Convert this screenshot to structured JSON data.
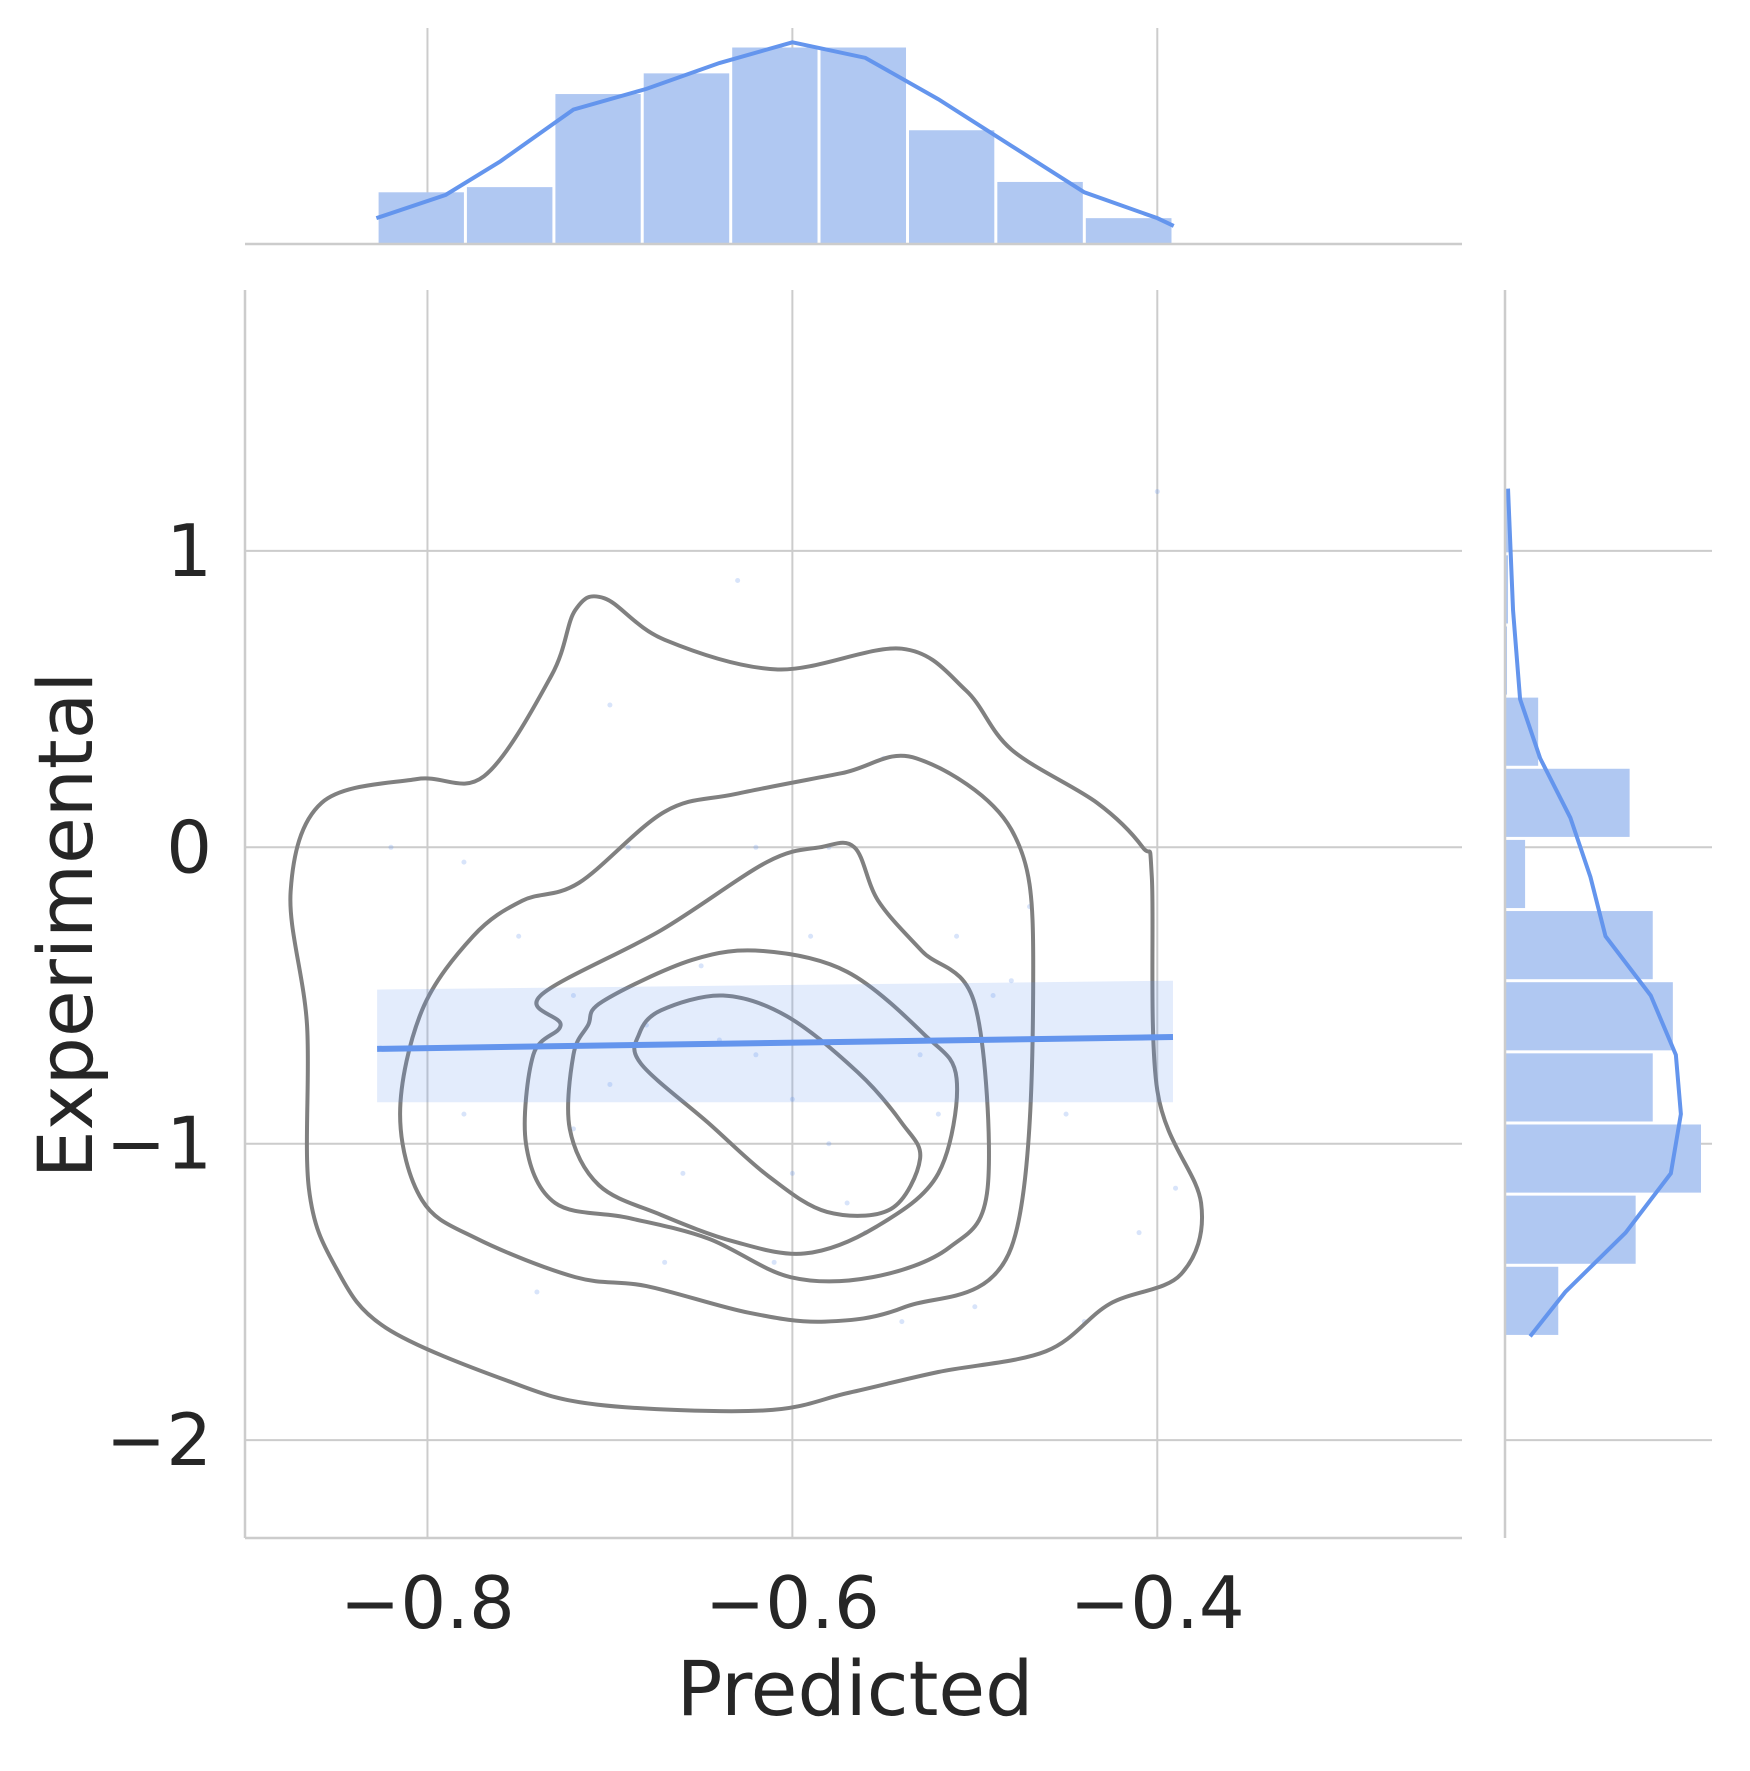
{
  "chart_data": {
    "type": "scatter",
    "xlabel": "Predicted",
    "ylabel": "Experimental",
    "xlim": [
      -0.9,
      -0.233
    ],
    "ylim": [
      -2.33,
      1.88
    ],
    "x_ticks": [
      -0.8,
      -0.6,
      -0.4
    ],
    "y_ticks": [
      1,
      0,
      -1,
      -2
    ],
    "grid": true,
    "colors": {
      "accent": "#6495ed",
      "contour": "#808080",
      "grid": "#cccccc",
      "hist": "#b0c8f2"
    },
    "regression": {
      "x": [
        -0.8276,
        -0.3914
      ],
      "y": [
        -0.68,
        -0.64
      ],
      "band_upper_y": [
        -0.48,
        -0.45
      ],
      "band_lower_y": [
        -0.86,
        -0.86
      ]
    },
    "scatter_points": {
      "x": [
        -0.82,
        -0.78,
        -0.75,
        -0.72,
        -0.7,
        -0.68,
        -0.65,
        -0.63,
        -0.61,
        -0.6,
        -0.58,
        -0.57,
        -0.55,
        -0.53,
        -0.51,
        -0.5,
        -0.48,
        -0.45,
        -0.41,
        -0.4,
        -0.39,
        -0.62,
        -0.64,
        -0.66,
        -0.7,
        -0.74,
        -0.59,
        -0.56,
        -0.52,
        -0.47,
        -0.78,
        -0.69,
        -0.58,
        -0.54,
        -0.62,
        -0.67,
        -0.72,
        -0.49,
        -0.44,
        -0.6
      ],
      "y": [
        0.0,
        -0.05,
        -0.3,
        -0.5,
        0.48,
        -0.6,
        -0.4,
        0.9,
        -1.4,
        -0.85,
        -1.0,
        -1.2,
        0.3,
        -0.7,
        -0.3,
        -1.55,
        -0.45,
        -0.9,
        -1.3,
        1.2,
        -1.15,
        0.0,
        -0.65,
        -1.1,
        -0.8,
        -1.5,
        -0.3,
        -1.3,
        -0.9,
        -0.2,
        -0.9,
        -0.0,
        0.0,
        -1.6,
        -0.7,
        -1.4,
        -0.95,
        -0.5,
        -1.6,
        -1.1
      ]
    },
    "kde_contours": [
      {
        "level": 1,
        "x": [
          -0.806,
          -0.769,
          -0.732,
          -0.719,
          -0.703,
          -0.67,
          -0.608,
          -0.54,
          -0.505,
          -0.48,
          -0.433,
          -0.408,
          -0.403,
          -0.4,
          -0.376,
          -0.387,
          -0.426,
          -0.461,
          -0.52,
          -0.569,
          -0.616,
          -0.707,
          -0.756,
          -0.823,
          -0.85,
          -0.865,
          -0.866,
          -0.875,
          -0.858
        ],
        "y": [
          0.23,
          0.24,
          0.58,
          0.8,
          0.84,
          0.7,
          0.6,
          0.67,
          0.53,
          0.33,
          0.15,
          0.0,
          -0.1,
          -0.82,
          -1.2,
          -1.44,
          -1.54,
          -1.7,
          -1.77,
          -1.84,
          -1.9,
          -1.88,
          -1.8,
          -1.62,
          -1.42,
          -1.15,
          -0.6,
          -0.15,
          0.15
        ]
      },
      {
        "level": 2,
        "x": [
          -0.717,
          -0.67,
          -0.631,
          -0.573,
          -0.532,
          -0.48,
          -0.468,
          -0.48,
          -0.538,
          -0.582,
          -0.624,
          -0.68,
          -0.719,
          -0.773,
          -0.803,
          -0.815,
          -0.803,
          -0.775,
          -0.748
        ],
        "y": [
          -0.12,
          0.12,
          0.18,
          0.25,
          0.3,
          0.06,
          -0.4,
          -1.35,
          -1.55,
          -1.6,
          -1.57,
          -1.48,
          -1.45,
          -1.32,
          -1.19,
          -0.9,
          -0.55,
          -0.3,
          -0.18
        ]
      },
      {
        "level": 3,
        "x": [
          -0.738,
          -0.672,
          -0.614,
          -0.585,
          -0.566,
          -0.553,
          -0.529,
          -0.5,
          -0.493,
          -0.514,
          -0.556,
          -0.601,
          -0.646,
          -0.69,
          -0.73,
          -0.746,
          -0.742,
          -0.727
        ],
        "y": [
          -0.5,
          -0.28,
          -0.05,
          -0.0,
          0.0,
          -0.18,
          -0.35,
          -0.53,
          -1.15,
          -1.35,
          -1.45,
          -1.45,
          -1.32,
          -1.25,
          -1.2,
          -1.0,
          -0.7,
          -0.6
        ]
      },
      {
        "level": 4,
        "x": [
          -0.704,
          -0.655,
          -0.616,
          -0.57,
          -0.528,
          -0.51,
          -0.52,
          -0.554,
          -0.593,
          -0.632,
          -0.672,
          -0.706,
          -0.722,
          -0.72,
          -0.712
        ],
        "y": [
          -0.52,
          -0.38,
          -0.35,
          -0.42,
          -0.63,
          -0.78,
          -1.1,
          -1.28,
          -1.37,
          -1.33,
          -1.24,
          -1.14,
          -0.95,
          -0.7,
          -0.6
        ]
      },
      {
        "level": 5,
        "x": [
          -0.672,
          -0.638,
          -0.603,
          -0.564,
          -0.54,
          -0.53,
          -0.546,
          -0.581,
          -0.613,
          -0.646,
          -0.683,
          -0.684
        ],
        "y": [
          -0.55,
          -0.5,
          -0.57,
          -0.76,
          -0.93,
          -1.05,
          -1.22,
          -1.23,
          -1.11,
          -0.93,
          -0.73,
          -0.63
        ]
      }
    ],
    "x_marginal": {
      "bin_edges": [
        -0.8276,
        -0.7792,
        -0.7307,
        -0.6823,
        -0.6338,
        -0.5854,
        -0.5369,
        -0.4885,
        -0.44,
        -0.3914
      ],
      "counts": [
        1.0,
        1.1,
        2.9,
        3.3,
        3.8,
        3.8,
        2.2,
        1.2,
        0.5
      ],
      "kde_x": [
        -0.828,
        -0.79,
        -0.76,
        -0.72,
        -0.68,
        -0.64,
        -0.6,
        -0.56,
        -0.52,
        -0.48,
        -0.44,
        -0.4,
        -0.391
      ],
      "kde_y": [
        0.5,
        0.95,
        1.6,
        2.6,
        3.0,
        3.5,
        3.9,
        3.6,
        2.8,
        1.9,
        1.0,
        0.5,
        0.35
      ]
    },
    "y_marginal": {
      "bin_edges": [
        -1.65,
        -1.41,
        -1.17,
        -0.93,
        -0.69,
        -0.45,
        -0.21,
        0.03,
        0.27,
        0.51,
        0.75,
        0.99,
        1.21
      ],
      "counts": [
        0.53,
        1.3,
        1.95,
        1.47,
        1.67,
        1.47,
        0.2,
        1.24,
        0.33,
        0.02,
        0.03,
        0.04
      ],
      "kde_y": [
        -1.65,
        -1.5,
        -1.3,
        -1.1,
        -0.9,
        -0.7,
        -0.5,
        -0.3,
        -0.1,
        0.1,
        0.3,
        0.5,
        0.8,
        1.21
      ],
      "kde_x": [
        0.25,
        0.6,
        1.2,
        1.65,
        1.75,
        1.7,
        1.45,
        1.0,
        0.85,
        0.65,
        0.35,
        0.15,
        0.08,
        0.03
      ]
    }
  }
}
